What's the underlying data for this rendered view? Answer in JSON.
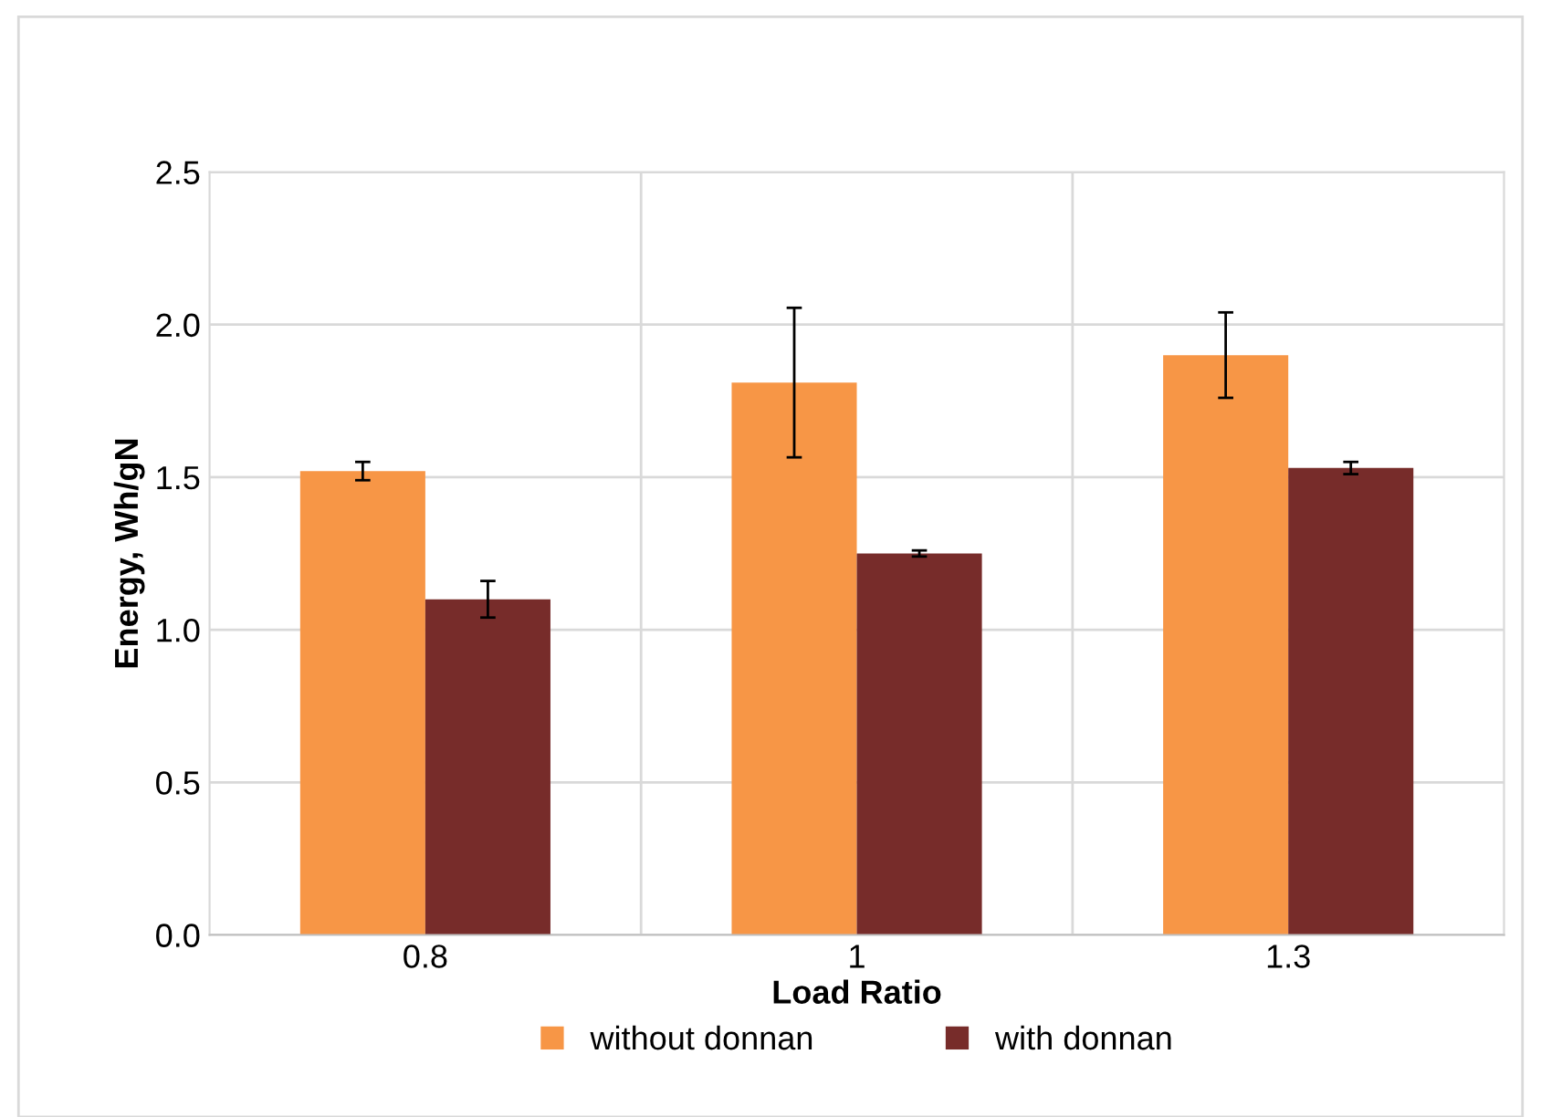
{
  "chart_data": {
    "type": "bar",
    "xlabel": "Load Ratio",
    "ylabel": "Energy, Wh/gN",
    "categories": [
      "0.8",
      "1",
      "1.3"
    ],
    "series": [
      {
        "name": "without donnan",
        "color": "#f79646",
        "values": [
          1.52,
          1.81,
          1.9
        ],
        "errors": [
          0.03,
          0.245,
          0.14
        ]
      },
      {
        "name": "with donnan",
        "color": "#772c2a",
        "values": [
          1.1,
          1.25,
          1.53
        ],
        "errors": [
          0.06,
          0.01,
          0.02
        ]
      }
    ],
    "ylim": [
      0,
      2.5
    ],
    "yticks": [
      "0.0",
      0.5,
      "1.0",
      1.5,
      "2.0",
      2.5
    ],
    "grid": true,
    "legend": "bottom"
  }
}
